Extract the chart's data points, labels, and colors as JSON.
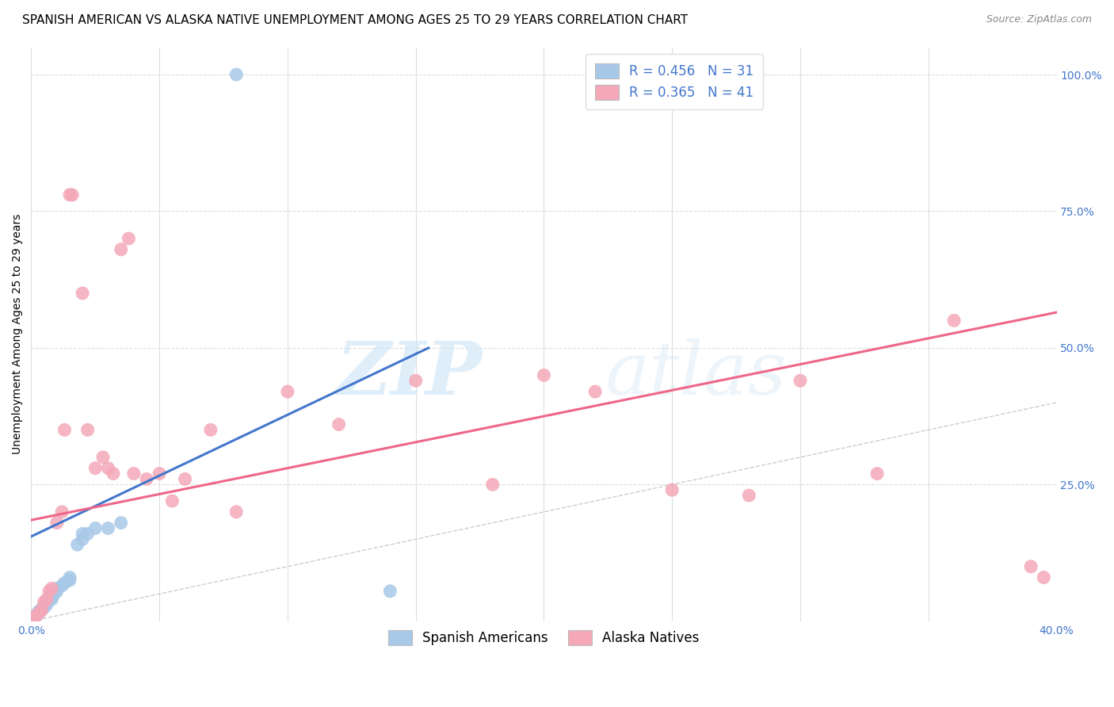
{
  "title": "SPANISH AMERICAN VS ALASKA NATIVE UNEMPLOYMENT AMONG AGES 25 TO 29 YEARS CORRELATION CHART",
  "source": "Source: ZipAtlas.com",
  "ylabel": "Unemployment Among Ages 25 to 29 years",
  "xlim": [
    0.0,
    0.4
  ],
  "ylim": [
    0.0,
    1.05
  ],
  "xticks": [
    0.0,
    0.05,
    0.1,
    0.15,
    0.2,
    0.25,
    0.3,
    0.35,
    0.4
  ],
  "yticks": [
    0.0,
    0.25,
    0.5,
    0.75,
    1.0
  ],
  "blue_R": 0.456,
  "blue_N": 31,
  "pink_R": 0.365,
  "pink_N": 41,
  "blue_color": "#a8c8e8",
  "pink_color": "#f4a8b8",
  "blue_line_color": "#4477cc",
  "pink_line_color": "#ee6688",
  "blue_scatter": [
    [
      0.001,
      0.005
    ],
    [
      0.001,
      0.008
    ],
    [
      0.002,
      0.01
    ],
    [
      0.002,
      0.012
    ],
    [
      0.003,
      0.015
    ],
    [
      0.003,
      0.018
    ],
    [
      0.004,
      0.02
    ],
    [
      0.004,
      0.022
    ],
    [
      0.005,
      0.025
    ],
    [
      0.005,
      0.03
    ],
    [
      0.006,
      0.03
    ],
    [
      0.006,
      0.035
    ],
    [
      0.007,
      0.04
    ],
    [
      0.008,
      0.04
    ],
    [
      0.008,
      0.045
    ],
    [
      0.009,
      0.05
    ],
    [
      0.01,
      0.055
    ],
    [
      0.01,
      0.06
    ],
    [
      0.012,
      0.065
    ],
    [
      0.013,
      0.07
    ],
    [
      0.015,
      0.075
    ],
    [
      0.015,
      0.08
    ],
    [
      0.018,
      0.14
    ],
    [
      0.02,
      0.15
    ],
    [
      0.02,
      0.16
    ],
    [
      0.022,
      0.16
    ],
    [
      0.025,
      0.17
    ],
    [
      0.03,
      0.17
    ],
    [
      0.035,
      0.18
    ],
    [
      0.08,
      1.0
    ],
    [
      0.14,
      0.055
    ]
  ],
  "pink_scatter": [
    [
      0.001,
      0.005
    ],
    [
      0.002,
      0.01
    ],
    [
      0.003,
      0.015
    ],
    [
      0.004,
      0.02
    ],
    [
      0.005,
      0.035
    ],
    [
      0.006,
      0.04
    ],
    [
      0.007,
      0.055
    ],
    [
      0.008,
      0.06
    ],
    [
      0.01,
      0.18
    ],
    [
      0.012,
      0.2
    ],
    [
      0.013,
      0.35
    ],
    [
      0.015,
      0.78
    ],
    [
      0.016,
      0.78
    ],
    [
      0.02,
      0.6
    ],
    [
      0.022,
      0.35
    ],
    [
      0.025,
      0.28
    ],
    [
      0.028,
      0.3
    ],
    [
      0.03,
      0.28
    ],
    [
      0.032,
      0.27
    ],
    [
      0.035,
      0.68
    ],
    [
      0.038,
      0.7
    ],
    [
      0.04,
      0.27
    ],
    [
      0.045,
      0.26
    ],
    [
      0.05,
      0.27
    ],
    [
      0.055,
      0.22
    ],
    [
      0.06,
      0.26
    ],
    [
      0.07,
      0.35
    ],
    [
      0.08,
      0.2
    ],
    [
      0.1,
      0.42
    ],
    [
      0.12,
      0.36
    ],
    [
      0.15,
      0.44
    ],
    [
      0.18,
      0.25
    ],
    [
      0.2,
      0.45
    ],
    [
      0.22,
      0.42
    ],
    [
      0.25,
      0.24
    ],
    [
      0.28,
      0.23
    ],
    [
      0.3,
      0.44
    ],
    [
      0.33,
      0.27
    ],
    [
      0.36,
      0.55
    ],
    [
      0.39,
      0.1
    ],
    [
      0.395,
      0.08
    ]
  ],
  "blue_line_x": [
    0.0,
    0.155
  ],
  "blue_line_y": [
    0.155,
    0.5
  ],
  "pink_line_x": [
    0.0,
    0.4
  ],
  "pink_line_y": [
    0.185,
    0.565
  ],
  "ref_line_x": [
    0.0,
    1.0
  ],
  "ref_line_y": [
    0.0,
    1.0
  ],
  "watermark_zip": "ZIP",
  "watermark_atlas": "atlas",
  "bg_color": "#ffffff",
  "legend_label_blue": "Spanish Americans",
  "legend_label_pink": "Alaska Natives",
  "title_fontsize": 11,
  "axis_label_fontsize": 10,
  "tick_fontsize": 10,
  "legend_fontsize": 12
}
